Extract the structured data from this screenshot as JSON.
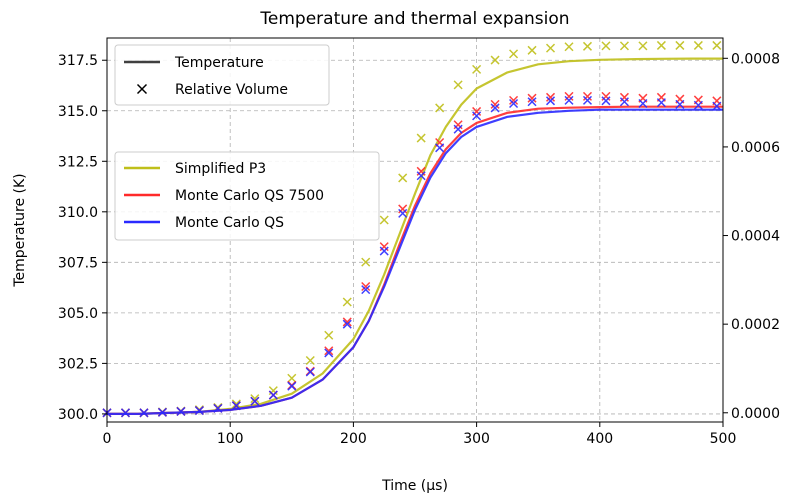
{
  "chart_data": {
    "type": "line",
    "title": "Temperature and thermal expansion",
    "xlabel": "Time (μs)",
    "ylabel": "Temperature (K)",
    "xlim": [
      0,
      500
    ],
    "ylim": [
      299.6,
      318.6
    ],
    "y2lim": [
      -2.08e-05,
      0.0008458
    ],
    "x_ticks": [
      "0",
      "100",
      "200",
      "300",
      "400",
      "500"
    ],
    "y_ticks": [
      "300.0",
      "302.5",
      "305.0",
      "307.5",
      "310.0",
      "312.5",
      "315.0",
      "317.5"
    ],
    "y2_ticks": [
      "0.0000",
      "0.0002",
      "0.0004",
      "0.0006",
      "0.0008"
    ],
    "grid": true,
    "legend_style": {
      "location": "upper-left",
      "entries": [
        {
          "label": "Temperature",
          "marker": "line",
          "color": "#404040"
        },
        {
          "label": "Relative Volume",
          "marker": "x",
          "color": "#000000"
        }
      ]
    },
    "legend_series": {
      "location": "center-left",
      "entries": [
        {
          "label": "Simplified P3",
          "color": "#bfbf1a"
        },
        {
          "label": "Monte Carlo QS 7500",
          "color": "#ff2a2a"
        },
        {
          "label": "Monte Carlo QS",
          "color": "#2a2aff"
        }
      ]
    },
    "series": [
      {
        "name": "Simplified P3",
        "color": "#bfbf1a",
        "temperature": {
          "x": [
            0,
            25,
            50,
            75,
            100,
            125,
            150,
            175,
            200,
            212.5,
            225,
            237.5,
            250,
            262.5,
            275,
            287.5,
            300,
            325,
            350,
            375,
            400,
            425,
            450,
            475,
            500
          ],
          "y": [
            300.0,
            300.0,
            300.05,
            300.1,
            300.25,
            300.5,
            301.0,
            302.0,
            303.7,
            305.1,
            306.9,
            308.9,
            310.9,
            312.8,
            314.2,
            315.3,
            316.1,
            316.9,
            317.3,
            317.45,
            317.52,
            317.55,
            317.57,
            317.58,
            317.58
          ]
        },
        "relative_volume": {
          "x": [
            0,
            15,
            30,
            45,
            60,
            75,
            90,
            105,
            120,
            135,
            150,
            165,
            180,
            195,
            210,
            225,
            240,
            255,
            270,
            285,
            300,
            315,
            330,
            345,
            360,
            375,
            390,
            405,
            420,
            435,
            450,
            465,
            480,
            495
          ],
          "y": [
            0.0,
            0.0,
            0.0,
            2e-06,
            4e-06,
            7e-06,
            1.2e-05,
            2e-05,
            3.2e-05,
            5e-05,
            7.8e-05,
            0.000118,
            0.000175,
            0.00025,
            0.00034,
            0.000435,
            0.00053,
            0.00062,
            0.000688,
            0.00074,
            0.000775,
            0.000796,
            0.00081,
            0.000818,
            0.000823,
            0.000826,
            0.000827,
            0.000828,
            0.000828,
            0.000828,
            0.000829,
            0.000829,
            0.000829,
            0.000829
          ]
        }
      },
      {
        "name": "Monte Carlo QS 7500",
        "color": "#ff2a2a",
        "temperature": {
          "x": [
            0,
            25,
            50,
            75,
            100,
            125,
            150,
            175,
            200,
            212.5,
            225,
            237.5,
            250,
            262.5,
            275,
            287.5,
            300,
            325,
            350,
            375,
            400,
            425,
            450,
            475,
            500
          ],
          "y": [
            300.0,
            300.0,
            300.05,
            300.1,
            300.2,
            300.4,
            300.8,
            301.7,
            303.3,
            304.6,
            306.4,
            308.4,
            310.3,
            311.9,
            313.1,
            313.9,
            314.4,
            314.9,
            315.1,
            315.15,
            315.18,
            315.2,
            315.2,
            315.2,
            315.2
          ]
        },
        "relative_volume": {
          "x": [
            0,
            15,
            30,
            45,
            60,
            75,
            90,
            105,
            120,
            135,
            150,
            165,
            180,
            195,
            210,
            225,
            240,
            255,
            270,
            285,
            300,
            315,
            330,
            345,
            360,
            375,
            390,
            405,
            420,
            435,
            450,
            465,
            480,
            495
          ],
          "y": [
            0.0,
            0.0,
            0.0,
            1e-06,
            3e-06,
            5e-06,
            1e-05,
            1.6e-05,
            2.6e-05,
            4e-05,
            6.2e-05,
            9.4e-05,
            0.00014,
            0.000205,
            0.000285,
            0.000375,
            0.00046,
            0.000545,
            0.00061,
            0.00065,
            0.00068,
            0.000696,
            0.000705,
            0.00071,
            0.000712,
            0.000714,
            0.000714,
            0.000714,
            0.000712,
            0.00071,
            0.000712,
            0.000708,
            0.000706,
            0.000704
          ]
        }
      },
      {
        "name": "Monte Carlo QS",
        "color": "#2a2aff",
        "temperature": {
          "x": [
            0,
            25,
            50,
            75,
            100,
            125,
            150,
            175,
            200,
            212.5,
            225,
            237.5,
            250,
            262.5,
            275,
            287.5,
            300,
            325,
            350,
            375,
            400,
            425,
            450,
            475,
            500
          ],
          "y": [
            300.0,
            300.0,
            300.05,
            300.1,
            300.2,
            300.4,
            300.8,
            301.7,
            303.3,
            304.6,
            306.3,
            308.2,
            310.1,
            311.7,
            312.9,
            313.7,
            314.2,
            314.7,
            314.9,
            315.0,
            315.05,
            315.05,
            315.05,
            315.05,
            315.05
          ]
        },
        "relative_volume": {
          "x": [
            0,
            15,
            30,
            45,
            60,
            75,
            90,
            105,
            120,
            135,
            150,
            165,
            180,
            195,
            210,
            225,
            240,
            255,
            270,
            285,
            300,
            315,
            330,
            345,
            360,
            375,
            390,
            405,
            420,
            435,
            450,
            465,
            480,
            495
          ],
          "y": [
            0.0,
            0.0,
            0.0,
            1e-06,
            3e-06,
            5e-06,
            1e-05,
            1.6e-05,
            2.6e-05,
            4e-05,
            6e-05,
            9.2e-05,
            0.000135,
            0.0002,
            0.000278,
            0.000365,
            0.00045,
            0.000535,
            0.000598,
            0.00064,
            0.00067,
            0.000688,
            0.000698,
            0.000702,
            0.000704,
            0.000705,
            0.000705,
            0.000704,
            0.000702,
            0.000698,
            0.0007,
            0.000696,
            0.000694,
            0.000692
          ]
        }
      }
    ]
  }
}
